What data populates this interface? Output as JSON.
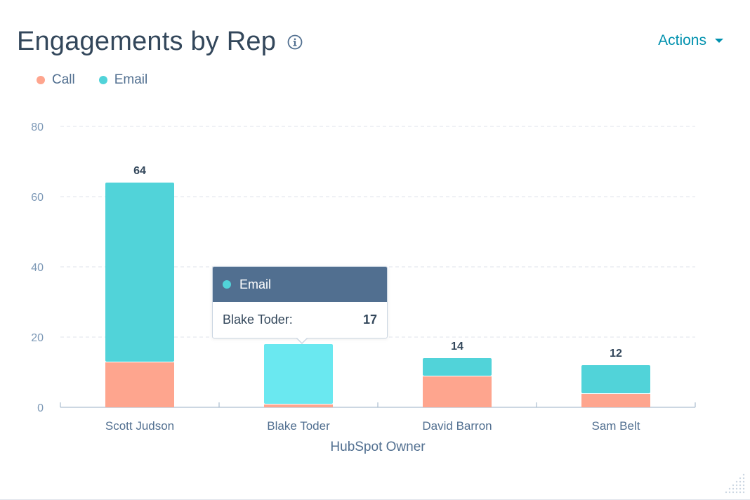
{
  "title": "Engagements by Rep",
  "actions_label": "Actions",
  "icons": {
    "info": "info-circle-icon",
    "caret": "caret-down-icon",
    "resize": "resize-grip-icon"
  },
  "colors": {
    "call": "#fea58e",
    "email": "#51d3d9",
    "email_hover": "#6ae8f0",
    "title": "#33475b",
    "accent": "#0091ae"
  },
  "chart_data": {
    "type": "bar",
    "stacked": true,
    "categories": [
      "Scott Judson",
      "Blake Toder",
      "David Barron",
      "Sam Belt"
    ],
    "series": [
      {
        "name": "Call",
        "values": [
          13,
          1,
          9,
          4
        ]
      },
      {
        "name": "Email",
        "values": [
          51,
          17,
          5,
          8
        ]
      }
    ],
    "totals": [
      64,
      18,
      14,
      12
    ],
    "total_labels": [
      "64",
      "",
      "14",
      "12"
    ],
    "xlabel": "HubSpot Owner",
    "ylabel": "",
    "ylim": [
      0,
      80
    ],
    "yticks": [
      0,
      20,
      40,
      60,
      80
    ],
    "grid": true,
    "legend_position": "top-left"
  },
  "tooltip": {
    "series": "Email",
    "category_label": "Blake Toder:",
    "value": "17"
  }
}
